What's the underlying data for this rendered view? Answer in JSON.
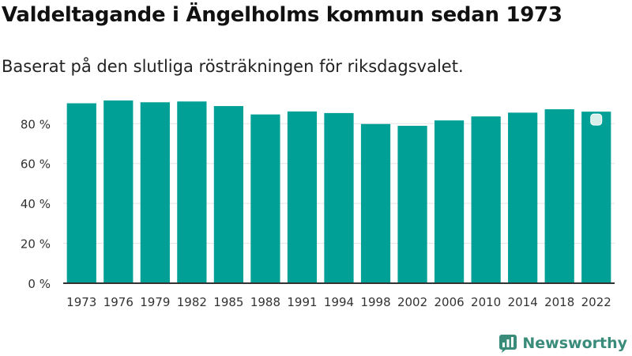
{
  "header": {
    "title": "Valdeltagande i Ängelholms kommun sedan 1973",
    "subtitle": "Baserat på den slutliga rösträkningen för riksdagsvalet."
  },
  "brand": {
    "name": "Newsworthy",
    "logo_icon": "newsworthy-logo-icon"
  },
  "colors": {
    "bar": "#00a096",
    "grid": "#e3e3e3",
    "axis": "#333333",
    "brand": "#3a8c7a"
  },
  "chart_data": {
    "type": "bar",
    "title": "Valdeltagande i Ängelholms kommun sedan 1973",
    "xlabel": "",
    "ylabel": "",
    "categories": [
      "1973",
      "1976",
      "1979",
      "1982",
      "1985",
      "1988",
      "1991",
      "1994",
      "1998",
      "2002",
      "2006",
      "2010",
      "2014",
      "2018",
      "2022"
    ],
    "values": [
      90.2,
      91.6,
      90.7,
      91.1,
      88.8,
      84.6,
      86.1,
      85.3,
      79.8,
      78.9,
      81.6,
      83.6,
      85.5,
      87.2,
      86.0
    ],
    "ylim": [
      0,
      92
    ],
    "yticks": [
      0,
      20,
      40,
      60,
      80
    ],
    "ytick_labels": [
      "0 %",
      "20 %",
      "40 %",
      "60 %",
      "80 %"
    ],
    "grid": true,
    "legend": "none"
  }
}
